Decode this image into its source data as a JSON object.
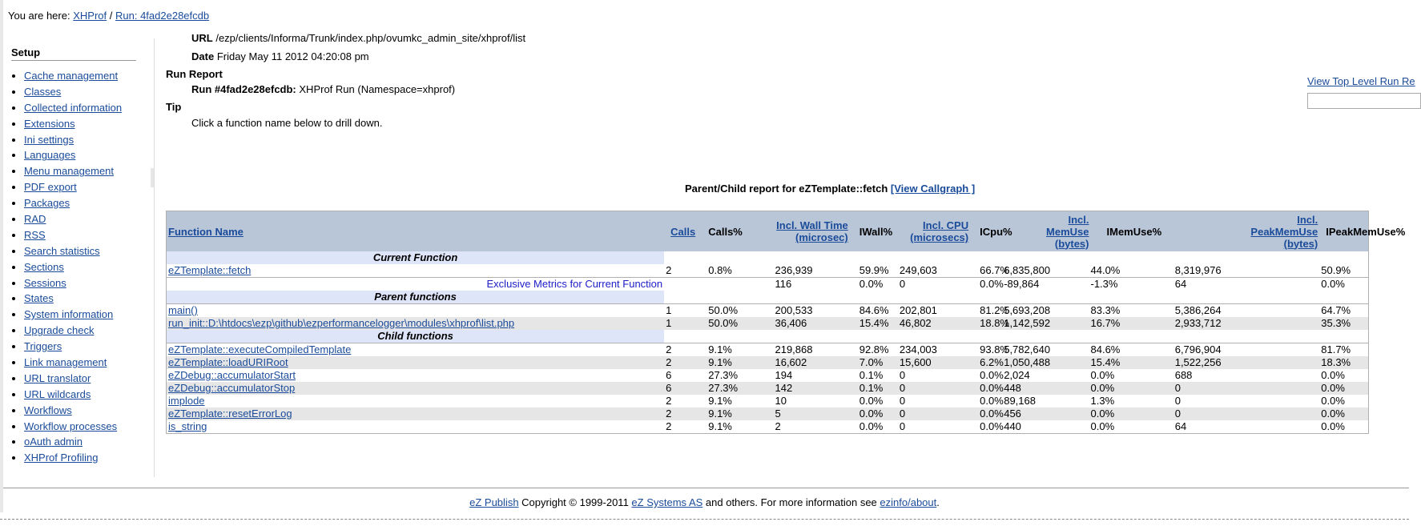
{
  "breadcrumb": {
    "prefix": "You are here:",
    "home": "XHProf",
    "sep": "/",
    "run": "Run: 4fad2e28efcdb"
  },
  "sidebar": {
    "title": "Setup",
    "items": [
      "Cache management",
      "Classes",
      "Collected information",
      "Extensions",
      "Ini settings",
      "Languages",
      "Menu management",
      "PDF export",
      "Packages",
      "RAD",
      "RSS",
      "Search statistics",
      "Sections",
      "Sessions",
      "States",
      "System information",
      "Upgrade check",
      "Triggers",
      "Link management",
      "URL translator",
      "URL wildcards",
      "Workflows",
      "Workflow processes",
      "oAuth admin",
      "XHProf Profiling"
    ]
  },
  "info": {
    "url_label": "URL",
    "url_value": "/ezp/clients/Informa/Trunk/index.php/ovumkc_admin_site/xhprof/list",
    "date_label": "Date",
    "date_value": "Friday May 11 2012 04:20:08 pm",
    "run_report_label": "Run Report",
    "run_label": "Run #4fad2e28efcdb:",
    "run_value": "XHProf Run (Namespace=xhprof)",
    "tip_label": "Tip",
    "tip_value": "Click a function name below to drill down."
  },
  "right_link": "View Top Level Run Re",
  "report": {
    "title": "Parent/Child report for eZTemplate::fetch",
    "callgraph": "[View Callgraph ]"
  },
  "table": {
    "headers": {
      "name": "Function Name",
      "calls": "Calls",
      "calls_pct": "Calls%",
      "wall_a": "Incl. Wall Time",
      "wall_b": "(microsec)",
      "iwall": "IWall%",
      "cpu_a": "Incl. CPU",
      "cpu_b": "(microsecs)",
      "icpu": "ICpu%",
      "mem_a": "Incl.",
      "mem_b": "MemUse",
      "mem_c": "(bytes)",
      "imem": "IMemUse%",
      "peak_a": "Incl.",
      "peak_b": "PeakMemUse",
      "peak_c": "(bytes)",
      "ipeak": "IPeakMemUse%"
    },
    "sections": {
      "current": "Current Function",
      "parents": "Parent functions",
      "children": "Child functions"
    },
    "current": {
      "name": "eZTemplate::fetch",
      "calls": "2",
      "calls_pct": "0.8%",
      "wall": "236,939",
      "wall_pct": "59.9%",
      "cpu": "249,603",
      "cpu_pct": "66.7%",
      "mem": "6,835,800",
      "mem_pct": "44.0%",
      "peak": "8,319,976",
      "peak_pct": "50.9%"
    },
    "exclusive": {
      "label": "Exclusive Metrics for Current Function",
      "wall": "116",
      "wall_pct": "0.0%",
      "cpu": "0",
      "cpu_pct": "0.0%",
      "mem": "-89,864",
      "mem_pct": "-1.3%",
      "peak": "64",
      "peak_pct": "0.0%"
    },
    "parents": [
      {
        "name": "main()",
        "calls": "1",
        "calls_pct": "50.0%",
        "wall": "200,533",
        "wall_pct": "84.6%",
        "cpu": "202,801",
        "cpu_pct": "81.2%",
        "mem": "5,693,208",
        "mem_pct": "83.3%",
        "peak": "5,386,264",
        "peak_pct": "64.7%"
      },
      {
        "name": "run_init::D:\\htdocs\\ezp\\github\\ezperformancelogger\\modules\\xhprof\\list.php",
        "calls": "1",
        "calls_pct": "50.0%",
        "wall": "36,406",
        "wall_pct": "15.4%",
        "cpu": "46,802",
        "cpu_pct": "18.8%",
        "mem": "1,142,592",
        "mem_pct": "16.7%",
        "peak": "2,933,712",
        "peak_pct": "35.3%"
      }
    ],
    "children": [
      {
        "name": "eZTemplate::executeCompiledTemplate",
        "calls": "2",
        "calls_pct": "9.1%",
        "wall": "219,868",
        "wall_pct": "92.8%",
        "cpu": "234,003",
        "cpu_pct": "93.8%",
        "mem": "5,782,640",
        "mem_pct": "84.6%",
        "peak": "6,796,904",
        "peak_pct": "81.7%"
      },
      {
        "name": "eZTemplate::loadURIRoot",
        "calls": "2",
        "calls_pct": "9.1%",
        "wall": "16,602",
        "wall_pct": "7.0%",
        "cpu": "15,600",
        "cpu_pct": "6.2%",
        "mem": "1,050,488",
        "mem_pct": "15.4%",
        "peak": "1,522,256",
        "peak_pct": "18.3%"
      },
      {
        "name": "eZDebug::accumulatorStart",
        "calls": "6",
        "calls_pct": "27.3%",
        "wall": "194",
        "wall_pct": "0.1%",
        "cpu": "0",
        "cpu_pct": "0.0%",
        "mem": "2,024",
        "mem_pct": "0.0%",
        "peak": "688",
        "peak_pct": "0.0%"
      },
      {
        "name": "eZDebug::accumulatorStop",
        "calls": "6",
        "calls_pct": "27.3%",
        "wall": "142",
        "wall_pct": "0.1%",
        "cpu": "0",
        "cpu_pct": "0.0%",
        "mem": "448",
        "mem_pct": "0.0%",
        "peak": "0",
        "peak_pct": "0.0%"
      },
      {
        "name": "implode",
        "calls": "2",
        "calls_pct": "9.1%",
        "wall": "10",
        "wall_pct": "0.0%",
        "cpu": "0",
        "cpu_pct": "0.0%",
        "mem": "89,168",
        "mem_pct": "1.3%",
        "peak": "0",
        "peak_pct": "0.0%"
      },
      {
        "name": "eZTemplate::resetErrorLog",
        "calls": "2",
        "calls_pct": "9.1%",
        "wall": "5",
        "wall_pct": "0.0%",
        "cpu": "0",
        "cpu_pct": "0.0%",
        "mem": "456",
        "mem_pct": "0.0%",
        "peak": "0",
        "peak_pct": "0.0%"
      },
      {
        "name": "is_string",
        "calls": "2",
        "calls_pct": "9.1%",
        "wall": "2",
        "wall_pct": "0.0%",
        "cpu": "0",
        "cpu_pct": "0.0%",
        "mem": "440",
        "mem_pct": "0.0%",
        "peak": "64",
        "peak_pct": "0.0%"
      }
    ]
  },
  "footer": {
    "link1": "eZ Publish",
    "text1": " Copyright © 1999-2011 ",
    "link2": "eZ Systems AS",
    "text2": " and others. For more information see ",
    "link3": "ezinfo/about",
    "text3": "."
  }
}
